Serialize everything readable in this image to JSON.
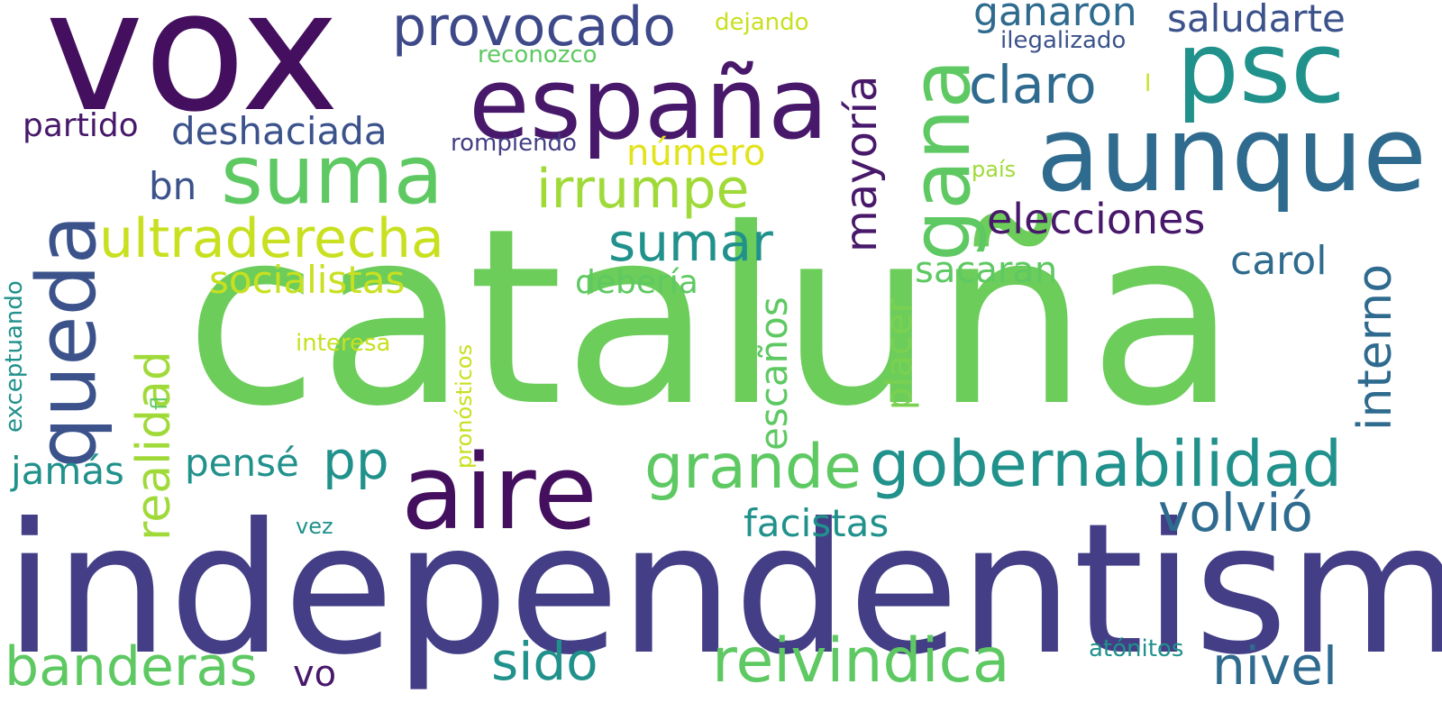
{
  "words": [
    {
      "id": "cataluna",
      "text": "cataluña",
      "color": "#6ccd5a"
    },
    {
      "id": "independentismo",
      "text": "independentismo",
      "color": "#433e85"
    },
    {
      "id": "vox",
      "text": "vox",
      "color": "#440f5e"
    },
    {
      "id": "espana",
      "text": "españa",
      "color": "#48186a"
    },
    {
      "id": "psc",
      "text": "psc",
      "color": "#21918c"
    },
    {
      "id": "aunque",
      "text": "aunque",
      "color": "#2f6b8e"
    },
    {
      "id": "aire",
      "text": "aire",
      "color": "#440f5e"
    },
    {
      "id": "queda",
      "text": "queda",
      "color": "#3b528b"
    },
    {
      "id": "suma",
      "text": "suma",
      "color": "#5ec962"
    },
    {
      "id": "gana",
      "text": "gana",
      "color": "#5ec962"
    },
    {
      "id": "gobernabilidad",
      "text": "gobernabilidad",
      "color": "#21918c"
    },
    {
      "id": "banderas",
      "text": "banderas",
      "color": "#5ec962"
    },
    {
      "id": "provocado",
      "text": "provocado",
      "color": "#3e4989"
    },
    {
      "id": "irrumpe",
      "text": "irrumpe",
      "color": "#a0da39"
    },
    {
      "id": "ultraderecha",
      "text": "ultraderecha",
      "color": "#c8e020"
    },
    {
      "id": "mayoria",
      "text": "mayoría",
      "color": "#48186a"
    },
    {
      "id": "reivindica",
      "text": "reivindica",
      "color": "#5ec962"
    },
    {
      "id": "grande",
      "text": "grande",
      "color": "#5ec962"
    },
    {
      "id": "volvio",
      "text": "volvió",
      "color": "#2f6b8e"
    },
    {
      "id": "realidad",
      "text": "realidad",
      "color": "#a0da39"
    },
    {
      "id": "interno",
      "text": "interno",
      "color": "#2f6b8e"
    },
    {
      "id": "claro",
      "text": "claro",
      "color": "#2f6b8e"
    },
    {
      "id": "sumar",
      "text": "sumar",
      "color": "#21918c"
    },
    {
      "id": "elecciones",
      "text": "elecciones",
      "color": "#48186a"
    },
    {
      "id": "nivel",
      "text": "nivel",
      "color": "#2f6b8e"
    },
    {
      "id": "sido",
      "text": "sido",
      "color": "#21918c"
    },
    {
      "id": "deshaciada",
      "text": "deshaciada",
      "color": "#3b528b"
    },
    {
      "id": "facistas",
      "text": "facistas",
      "color": "#21918c"
    },
    {
      "id": "escanos",
      "text": "escaños",
      "color": "#5ec962"
    },
    {
      "id": "ganaron",
      "text": "ganaron",
      "color": "#2f6b8e"
    },
    {
      "id": "saludarte",
      "text": "saludarte",
      "color": "#3b528b"
    },
    {
      "id": "socialistas",
      "text": "socialistas",
      "color": "#c8e020"
    },
    {
      "id": "pp",
      "text": "pp",
      "color": "#21918c"
    },
    {
      "id": "carol",
      "text": "carol",
      "color": "#2f6b8e"
    },
    {
      "id": "placer",
      "text": "placer",
      "color": "#7ad151"
    },
    {
      "id": "sacaran",
      "text": "sacaran",
      "color": "#5ec962"
    },
    {
      "id": "jamas",
      "text": "jamás",
      "color": "#21918c"
    },
    {
      "id": "pense",
      "text": "pensé",
      "color": "#21918c"
    },
    {
      "id": "numero",
      "text": "número",
      "color": "#e1e31b"
    },
    {
      "id": "bn",
      "text": "bn",
      "color": "#3b528b"
    },
    {
      "id": "partido",
      "text": "partido",
      "color": "#48186a"
    },
    {
      "id": "vo",
      "text": "vo",
      "color": "#48186a"
    },
    {
      "id": "deberia",
      "text": "debería",
      "color": "#5ec962"
    },
    {
      "id": "rompiendo",
      "text": "rompiendo",
      "color": "#433e85"
    },
    {
      "id": "exceptuando",
      "text": "exceptuando",
      "color": "#21918c"
    },
    {
      "id": "pronosticos",
      "text": "pronósticos",
      "color": "#c8e020"
    },
    {
      "id": "interesa",
      "text": "interesa",
      "color": "#c8e020"
    },
    {
      "id": "reconozco",
      "text": "reconozco",
      "color": "#5ec962"
    },
    {
      "id": "dejando",
      "text": "dejando",
      "color": "#c8e020"
    },
    {
      "id": "ilegalizado",
      "text": "ilegalizado",
      "color": "#3b528b"
    },
    {
      "id": "atonitos",
      "text": "atónitos",
      "color": "#21918c"
    },
    {
      "id": "pais",
      "text": "país",
      "color": "#a0da39"
    },
    {
      "id": "vez",
      "text": "vez",
      "color": "#21918c"
    },
    {
      "id": "l",
      "text": "l",
      "color": "#c8e020"
    },
    {
      "id": "fl",
      "text": "fl",
      "color": "#5ec962"
    }
  ]
}
